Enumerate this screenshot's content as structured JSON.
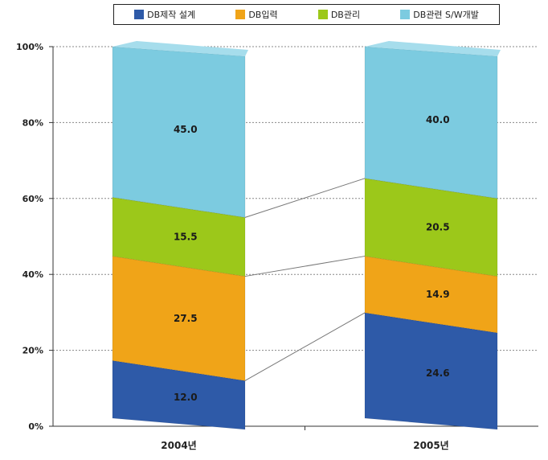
{
  "chart_data": {
    "type": "bar",
    "stacked": true,
    "percent": true,
    "categories": [
      "2004년",
      "2005년"
    ],
    "series": [
      {
        "name": "DB제작 설계",
        "values": [
          12.0,
          24.6
        ],
        "labels": [
          "12.0",
          "24.6"
        ],
        "color": "#2e5aa8",
        "top_color": "#4a78c4"
      },
      {
        "name": "DB입력",
        "values": [
          27.5,
          14.9
        ],
        "labels": [
          "27.5",
          "14.9"
        ],
        "color": "#f0a418",
        "top_color": "#f6c050"
      },
      {
        "name": "DB관리",
        "values": [
          15.5,
          20.5
        ],
        "labels": [
          "15.5",
          "20.5"
        ],
        "color": "#9cc81a",
        "top_color": "#b8dc40"
      },
      {
        "name": "DB관련 S/W개발",
        "values": [
          45.0,
          40.0
        ],
        "labels": [
          "45.0",
          "40.0"
        ],
        "color": "#7ccbe0",
        "top_color": "#a6ddec"
      }
    ],
    "yticks": [
      "0%",
      "20%",
      "40%",
      "60%",
      "80%",
      "100%"
    ],
    "ylim": [
      0,
      100
    ],
    "legend_position": "top",
    "grid": true
  }
}
